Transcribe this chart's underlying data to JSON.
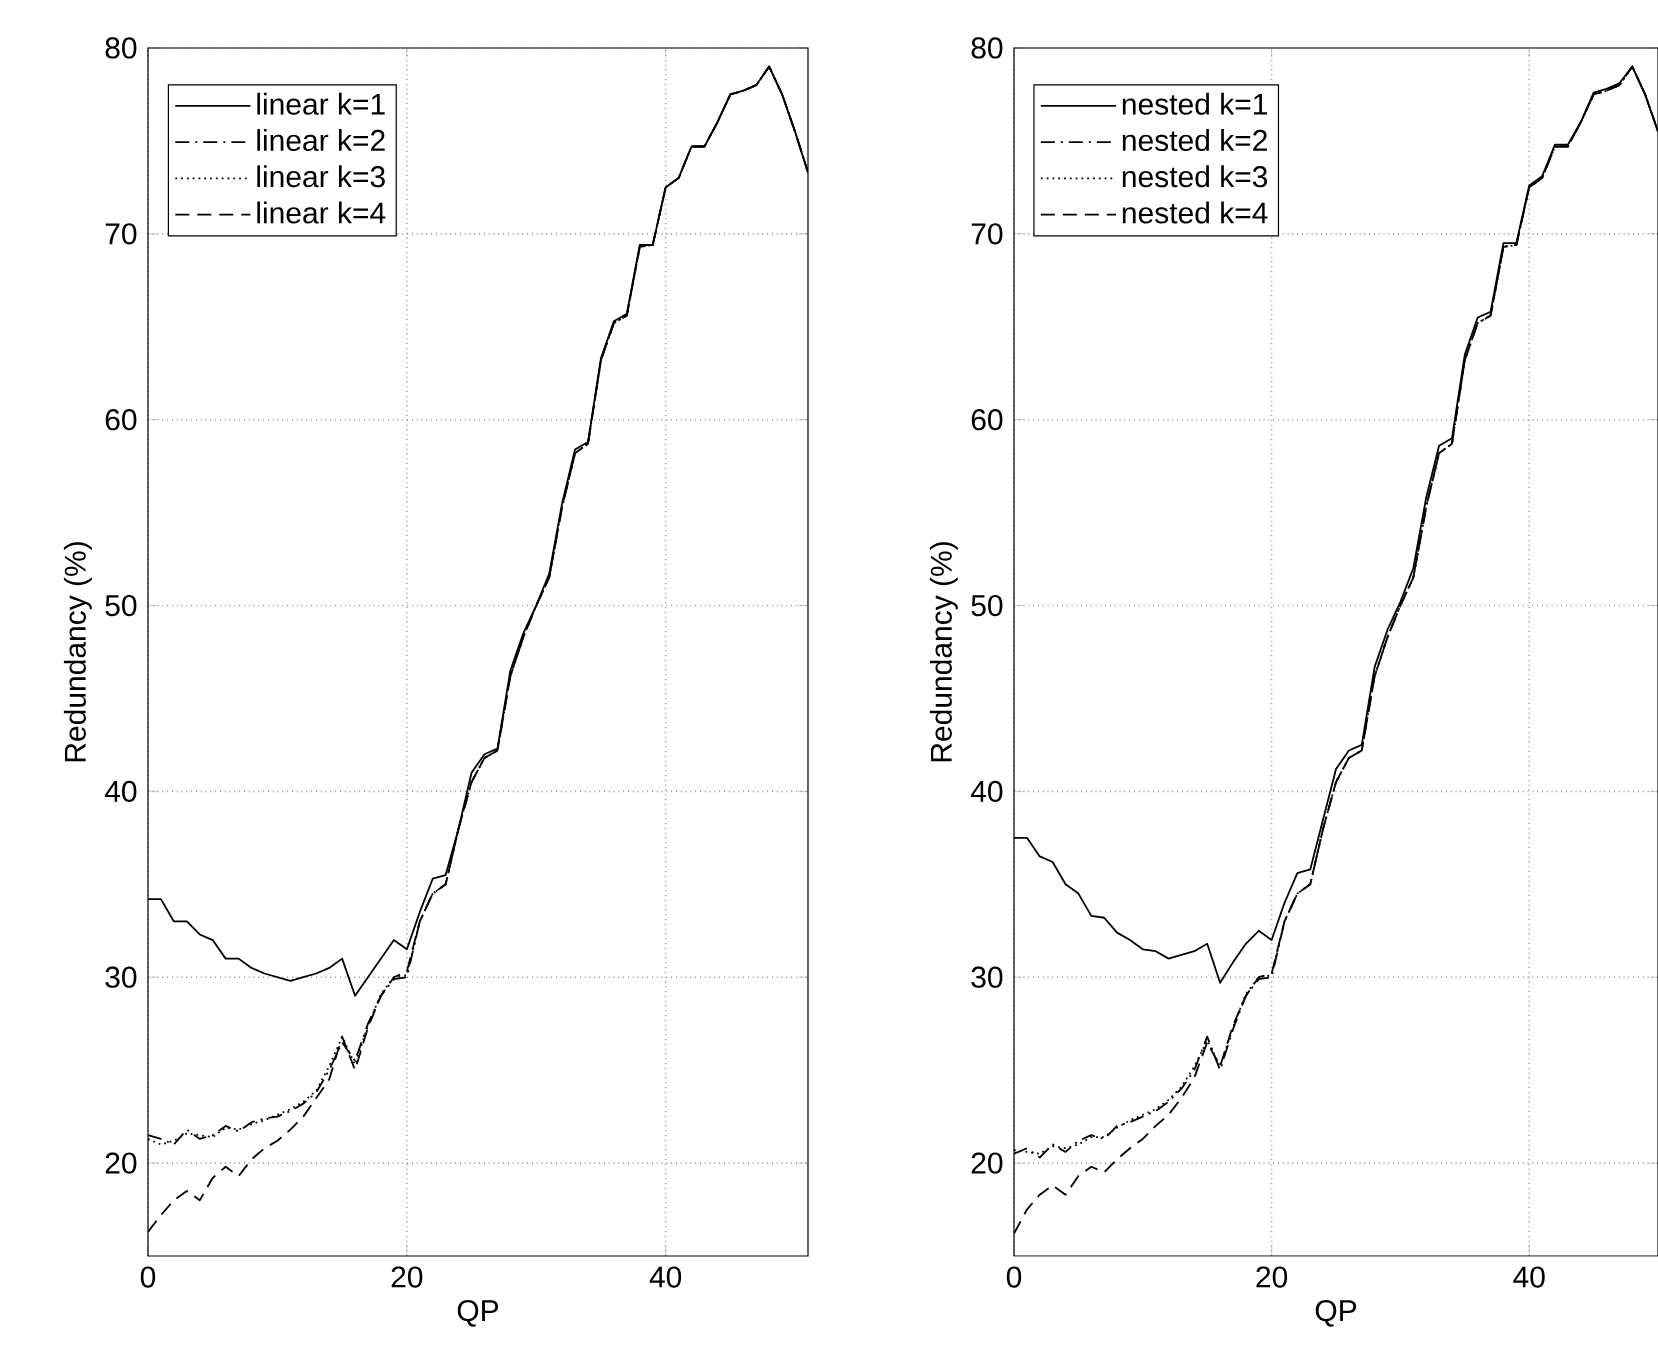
{
  "chart_data": [
    {
      "type": "line",
      "xlabel": "QP",
      "ylabel": "Redundancy (%)",
      "xlim": [
        0,
        51
      ],
      "ylim": [
        15,
        80
      ],
      "xticks": [
        0,
        20,
        40
      ],
      "yticks": [
        20,
        30,
        40,
        50,
        60,
        70,
        80
      ],
      "grid": true,
      "legend": "top left",
      "marker": "none",
      "x": [
        0,
        1,
        2,
        3,
        4,
        5,
        6,
        7,
        8,
        9,
        10,
        11,
        12,
        13,
        14,
        15,
        16,
        17,
        18,
        19,
        20,
        21,
        22,
        23,
        24,
        25,
        26,
        27,
        28,
        29,
        30,
        31,
        32,
        33,
        34,
        35,
        36,
        37,
        38,
        39,
        40,
        41,
        42,
        43,
        44,
        45,
        46,
        47,
        48,
        49,
        50,
        51
      ],
      "series": [
        {
          "name": "linear k=1",
          "color": "#000000",
          "line_style": "solid",
          "values": [
            34.2,
            34.2,
            33,
            33,
            32.3,
            32,
            31,
            31,
            30.5,
            30.2,
            30,
            29.8,
            30,
            30.2,
            30.5,
            31,
            29,
            30,
            31,
            32,
            31.5,
            33.5,
            35.3,
            35.5,
            38,
            41,
            42,
            42.3,
            46.5,
            48.5,
            50,
            51.7,
            55.5,
            58.4,
            58.8,
            63.3,
            65.3,
            65.7,
            69.4,
            69.4,
            72.5,
            73,
            74.7,
            74.7,
            76,
            77.5,
            77.7,
            78,
            79,
            77.5,
            75.5,
            73.3
          ]
        },
        {
          "name": "linear k=2",
          "color": "#000000",
          "line_style": "dashdot",
          "values": [
            21.5,
            21.3,
            21,
            21.8,
            21.3,
            21.5,
            22,
            21.7,
            22.2,
            22.4,
            22.5,
            22.8,
            23.2,
            23.8,
            25,
            26.5,
            25.5,
            27.5,
            29,
            29.9,
            30,
            33,
            34.5,
            35,
            38,
            40.5,
            41.8,
            42.2,
            46.2,
            48.3,
            50,
            51.5,
            55.3,
            58.2,
            58.7,
            63.2,
            65.2,
            65.6,
            69.3,
            69.4,
            72.5,
            73,
            74.7,
            74.7,
            76,
            77.5,
            77.7,
            78,
            79,
            77.5,
            75.5,
            73.3
          ]
        },
        {
          "name": "linear k=3",
          "color": "#000000",
          "line_style": "dotted",
          "values": [
            21.3,
            21,
            21.2,
            21.6,
            21.5,
            21.4,
            21.9,
            21.8,
            22.1,
            22.3,
            22.6,
            22.9,
            23.3,
            23.9,
            25.2,
            26.8,
            25.3,
            27.4,
            29.1,
            30,
            30.1,
            33,
            34.5,
            35,
            38,
            40.5,
            41.8,
            42.2,
            46.2,
            48.3,
            50,
            51.5,
            55.3,
            58.2,
            58.7,
            63.2,
            65.2,
            65.6,
            69.3,
            69.4,
            72.5,
            73,
            74.7,
            74.7,
            76,
            77.5,
            77.7,
            78,
            79,
            77.5,
            75.5,
            73.3
          ]
        },
        {
          "name": "linear k=4",
          "color": "#000000",
          "line_style": "dashed",
          "values": [
            16.3,
            17.2,
            18,
            18.5,
            18,
            19.2,
            19.8,
            19.3,
            20.2,
            20.8,
            21.2,
            21.8,
            22.5,
            23.5,
            24.5,
            26.8,
            25,
            27.3,
            29,
            30,
            30.3,
            33,
            34.5,
            35,
            38,
            40.5,
            41.8,
            42.2,
            46.2,
            48.3,
            50,
            51.5,
            55.3,
            58.2,
            58.7,
            63.2,
            65.2,
            65.6,
            69.3,
            69.4,
            72.5,
            73,
            74.7,
            74.7,
            76,
            77.5,
            77.7,
            78,
            79,
            77.5,
            75.5,
            73.3
          ]
        }
      ]
    },
    {
      "type": "line",
      "xlabel": "QP",
      "ylabel": "Redundancy (%)",
      "xlim": [
        0,
        50
      ],
      "ylim": [
        15,
        80
      ],
      "xticks": [
        0,
        20,
        40
      ],
      "yticks": [
        20,
        30,
        40,
        50,
        60,
        70,
        80
      ],
      "grid": true,
      "legend": "top left",
      "marker": "none",
      "x": [
        0,
        1,
        2,
        3,
        4,
        5,
        6,
        7,
        8,
        9,
        10,
        11,
        12,
        13,
        14,
        15,
        16,
        17,
        18,
        19,
        20,
        21,
        22,
        23,
        24,
        25,
        26,
        27,
        28,
        29,
        30,
        31,
        32,
        33,
        34,
        35,
        36,
        37,
        38,
        39,
        40,
        41,
        42,
        43,
        44,
        45,
        46,
        47,
        48,
        49,
        50
      ],
      "series": [
        {
          "name": "nested k=1",
          "color": "#000000",
          "line_style": "solid",
          "values": [
            37.5,
            37.5,
            36.5,
            36.2,
            35,
            34.5,
            33.3,
            33.2,
            32.4,
            32,
            31.5,
            31.4,
            31,
            31.2,
            31.4,
            31.8,
            29.7,
            30.8,
            31.8,
            32.5,
            32,
            34,
            35.6,
            35.8,
            38.5,
            41.2,
            42.2,
            42.5,
            46.7,
            48.7,
            50.2,
            52,
            55.8,
            58.6,
            59,
            63.5,
            65.5,
            65.8,
            69.5,
            69.5,
            72.6,
            73.1,
            74.8,
            74.8,
            76,
            77.6,
            77.8,
            78.1,
            79,
            77.5,
            75.5
          ]
        },
        {
          "name": "nested k=2",
          "color": "#000000",
          "line_style": "dashdot",
          "values": [
            20.5,
            20.8,
            20.3,
            21,
            20.6,
            21.2,
            21.5,
            21.3,
            22,
            22.2,
            22.5,
            22.8,
            23.3,
            24,
            25,
            26.8,
            25,
            27.2,
            29,
            29.9,
            30,
            33,
            34.5,
            35,
            38,
            40.5,
            41.8,
            42.2,
            46.2,
            48.3,
            50,
            51.5,
            55.3,
            58.2,
            58.7,
            63.2,
            65.2,
            65.6,
            69.3,
            69.4,
            72.5,
            73,
            74.7,
            74.7,
            76,
            77.5,
            77.7,
            78,
            79,
            77.5,
            75.5
          ]
        },
        {
          "name": "nested k=3",
          "color": "#000000",
          "line_style": "dotted",
          "values": [
            20.7,
            20.6,
            20.5,
            20.9,
            20.8,
            21,
            21.4,
            21.4,
            21.9,
            22.3,
            22.6,
            22.9,
            23.4,
            24.1,
            25.2,
            26.6,
            25.2,
            27.3,
            29.1,
            30,
            30.1,
            33,
            34.5,
            35,
            38,
            40.5,
            41.8,
            42.2,
            46.2,
            48.3,
            50,
            51.5,
            55.3,
            58.2,
            58.7,
            63.2,
            65.2,
            65.6,
            69.3,
            69.4,
            72.5,
            73,
            74.7,
            74.7,
            76,
            77.5,
            77.7,
            78,
            79,
            77.5,
            75.5
          ]
        },
        {
          "name": "nested k=4",
          "color": "#000000",
          "line_style": "dashed",
          "values": [
            16.2,
            17.5,
            18.3,
            18.8,
            18.3,
            19.3,
            19.8,
            19.5,
            20.2,
            20.8,
            21.3,
            22,
            22.6,
            23.5,
            24.6,
            26.5,
            25.2,
            27.4,
            29,
            30,
            30.2,
            33,
            34.5,
            35,
            38,
            40.5,
            41.8,
            42.2,
            46.2,
            48.3,
            50,
            51.5,
            55.3,
            58.2,
            58.7,
            63.2,
            65.2,
            65.6,
            69.3,
            69.4,
            72.5,
            73,
            74.7,
            74.7,
            76,
            77.5,
            77.7,
            78,
            79,
            77.5,
            75.5
          ]
        }
      ]
    }
  ]
}
